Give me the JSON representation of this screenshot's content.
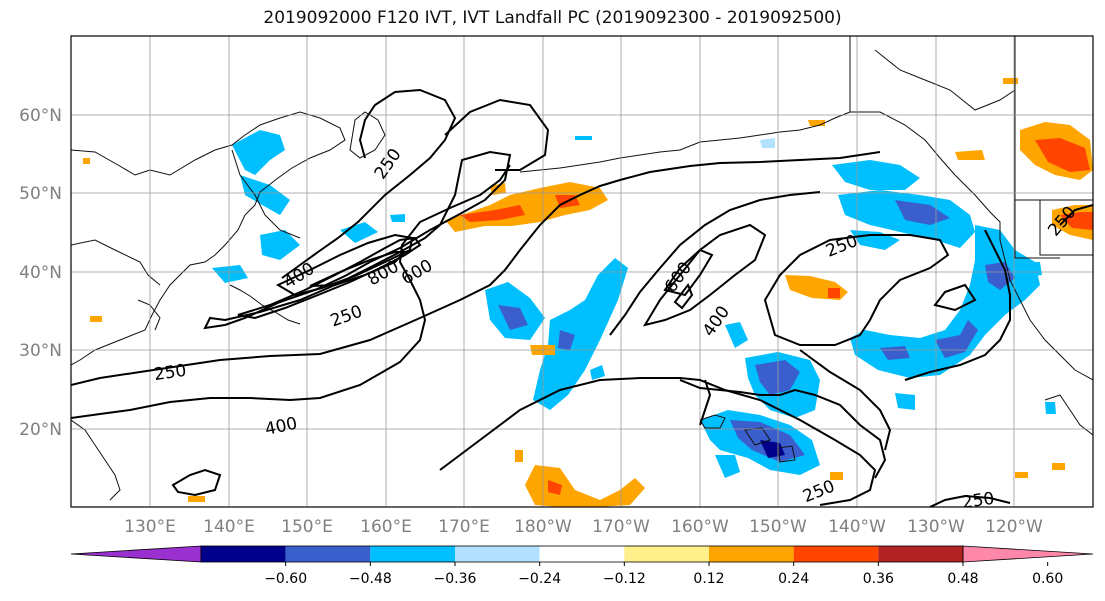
{
  "title": "2019092000 F120 IVT, IVT Landfall PC (2019092300 - 2019092500)",
  "lon_labels": [
    "130°E",
    "140°E",
    "150°E",
    "160°E",
    "170°E",
    "180°W",
    "170°W",
    "160°W",
    "150°W",
    "140°W",
    "130°W",
    "120°W"
  ],
  "lat_labels": [
    "60°N",
    "50°N",
    "40°N",
    "30°N",
    "20°N"
  ],
  "colorbar": {
    "colors": [
      "#9b30d0",
      "#00008b",
      "#3a5fcd",
      "#00bfff",
      "#b2e2ff",
      "#ffffff",
      "#fff08c",
      "#ffa500",
      "#ff4500",
      "#b22222",
      "#ff88aa"
    ],
    "tick_labels": [
      "−0.60",
      "−0.48",
      "−0.36",
      "−0.24",
      "−0.12",
      "0.12",
      "0.24",
      "0.36",
      "0.48",
      "0.60"
    ]
  },
  "contour_labels": [
    {
      "text": "250"
    },
    {
      "text": "400"
    },
    {
      "text": "800"
    },
    {
      "text": "600"
    },
    {
      "text": "250"
    },
    {
      "text": "250"
    },
    {
      "text": "400"
    },
    {
      "text": "600"
    },
    {
      "text": "400"
    },
    {
      "text": "250"
    },
    {
      "text": "250"
    },
    {
      "text": "250"
    },
    {
      "text": "250"
    }
  ],
  "icons": {
    "land_outline": "coastline",
    "blue_patches": "negative-pc-shading",
    "orange_patches": "positive-pc-shading"
  }
}
